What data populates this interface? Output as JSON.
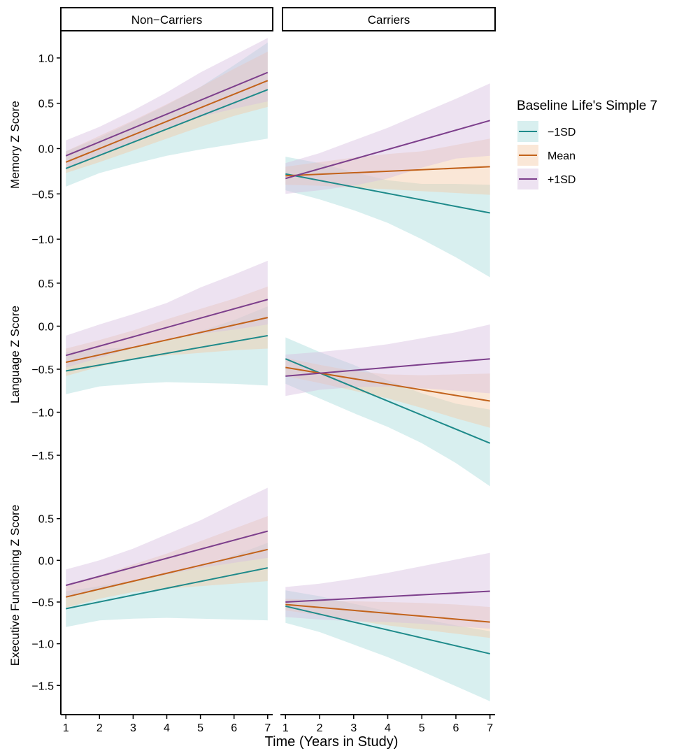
{
  "facets": [
    "Non−Carriers",
    "Carriers"
  ],
  "legend": {
    "title": "Baseline Life's Simple 7",
    "items": [
      {
        "label": "−1SD",
        "color": "#1e8a8a",
        "fill": "#a8dcdc"
      },
      {
        "label": "Mean",
        "color": "#c2621a",
        "fill": "#f3c9a6"
      },
      {
        "label": "+1SD",
        "color": "#7d3f8c",
        "fill": "#d7bfe0"
      }
    ],
    "placement": "right"
  },
  "xlabel": "Time (Years in Study)",
  "chart_data": [
    {
      "type": "line",
      "ylabel": "Memory Z Score",
      "x": [
        1,
        2,
        3,
        4,
        5,
        6,
        7
      ],
      "xlim": [
        0.85,
        7.15
      ],
      "ylim": [
        -1.2,
        1.3
      ],
      "yticks": [
        1.0,
        0.5,
        0.0,
        -0.5,
        -1.0
      ],
      "ytick_labels": [
        "1.0",
        "0.5",
        "0.0",
        "−0.5",
        "−1.0"
      ],
      "panels": [
        {
          "facet": "Non−Carriers",
          "series": [
            {
              "name": "−1SD",
              "start": -0.22,
              "end": 0.65,
              "lower": [
                -0.42,
                -0.27,
                -0.17,
                -0.08,
                -0.01,
                0.05,
                0.11
              ],
              "upper": [
                -0.03,
                0.12,
                0.3,
                0.48,
                0.68,
                0.92,
                1.17
              ]
            },
            {
              "name": "Mean",
              "start": -0.15,
              "end": 0.75,
              "lower": [
                -0.27,
                -0.15,
                -0.02,
                0.11,
                0.24,
                0.36,
                0.46
              ],
              "upper": [
                -0.03,
                0.14,
                0.31,
                0.49,
                0.68,
                0.88,
                1.07
              ]
            },
            {
              "name": "+1SD",
              "start": -0.08,
              "end": 0.84,
              "lower": [
                -0.23,
                -0.07,
                0.08,
                0.23,
                0.35,
                0.44,
                0.52
              ],
              "upper": [
                0.09,
                0.24,
                0.42,
                0.62,
                0.84,
                1.03,
                1.22
              ]
            }
          ]
        },
        {
          "facet": "Carriers",
          "series": [
            {
              "name": "−1SD",
              "start": -0.28,
              "end": -0.71,
              "lower": [
                -0.46,
                -0.56,
                -0.68,
                -0.82,
                -1.0,
                -1.2,
                -1.42
              ],
              "upper": [
                -0.09,
                -0.16,
                -0.26,
                -0.35,
                -0.39,
                -0.39,
                -0.4
              ]
            },
            {
              "name": "Mean",
              "start": -0.3,
              "end": -0.2,
              "lower": [
                -0.4,
                -0.41,
                -0.43,
                -0.45,
                -0.47,
                -0.49,
                -0.51
              ],
              "upper": [
                -0.2,
                -0.15,
                -0.1,
                -0.06,
                -0.03,
                0.04,
                0.11
              ]
            },
            {
              "name": "+1SD",
              "start": -0.33,
              "end": 0.31,
              "lower": [
                -0.5,
                -0.46,
                -0.41,
                -0.33,
                -0.21,
                -0.11,
                -0.08
              ],
              "upper": [
                -0.16,
                -0.05,
                0.09,
                0.23,
                0.39,
                0.55,
                0.72
              ]
            }
          ]
        }
      ]
    },
    {
      "type": "line",
      "ylabel": "Language Z Score",
      "x": [
        1,
        2,
        3,
        4,
        5,
        6,
        7
      ],
      "xlim": [
        0.85,
        7.15
      ],
      "ylim": [
        -1.8,
        0.8
      ],
      "yticks": [
        0.5,
        0.0,
        -0.5,
        -1.0,
        -1.5
      ],
      "ytick_labels": [
        "0.5",
        "0.0",
        "−0.5",
        "−1.0",
        "−1.5"
      ],
      "panels": [
        {
          "facet": "Non−Carriers",
          "series": [
            {
              "name": "−1SD",
              "start": -0.52,
              "end": -0.11,
              "lower": [
                -0.79,
                -0.7,
                -0.67,
                -0.65,
                -0.66,
                -0.67,
                -0.69
              ],
              "upper": [
                -0.3,
                -0.27,
                -0.24,
                -0.17,
                -0.06,
                0.07,
                0.23
              ]
            },
            {
              "name": "Mean",
              "start": -0.42,
              "end": 0.1,
              "lower": [
                -0.58,
                -0.47,
                -0.39,
                -0.34,
                -0.31,
                -0.28,
                -0.26
              ],
              "upper": [
                -0.26,
                -0.16,
                -0.05,
                0.08,
                0.2,
                0.32,
                0.46
              ]
            },
            {
              "name": "+1SD",
              "start": -0.34,
              "end": 0.31,
              "lower": [
                -0.48,
                -0.37,
                -0.25,
                -0.16,
                -0.09,
                -0.04,
                0.02
              ],
              "upper": [
                -0.11,
                0.02,
                0.14,
                0.27,
                0.45,
                0.6,
                0.76
              ]
            }
          ]
        },
        {
          "facet": "Carriers",
          "series": [
            {
              "name": "−1SD",
              "start": -0.38,
              "end": -1.36,
              "lower": [
                -0.67,
                -0.84,
                -1.01,
                -1.17,
                -1.36,
                -1.59,
                -1.86
              ],
              "upper": [
                -0.13,
                -0.3,
                -0.45,
                -0.63,
                -0.78,
                -0.9,
                -0.97
              ]
            },
            {
              "name": "Mean",
              "start": -0.48,
              "end": -0.87,
              "lower": [
                -0.58,
                -0.66,
                -0.75,
                -0.84,
                -0.95,
                -1.07,
                -1.18
              ],
              "upper": [
                -0.37,
                -0.45,
                -0.52,
                -0.56,
                -0.57,
                -0.56,
                -0.55
              ]
            },
            {
              "name": "+1SD",
              "start": -0.58,
              "end": -0.38,
              "lower": [
                -0.81,
                -0.74,
                -0.71,
                -0.7,
                -0.72,
                -0.75,
                -0.78
              ],
              "upper": [
                -0.33,
                -0.3,
                -0.26,
                -0.21,
                -0.14,
                -0.07,
                0.02
              ]
            }
          ]
        }
      ]
    },
    {
      "type": "line",
      "ylabel": "Executive Functioning Z Score",
      "x": [
        1,
        2,
        3,
        4,
        5,
        6,
        7
      ],
      "xlim": [
        0.85,
        7.15
      ],
      "ylim": [
        -1.85,
        0.95
      ],
      "yticks": [
        0.5,
        0.0,
        -0.5,
        -1.0,
        -1.5
      ],
      "ytick_labels": [
        "0.5",
        "0.0",
        "−0.5",
        "−1.0",
        "−1.5"
      ],
      "panels": [
        {
          "facet": "Non−Carriers",
          "series": [
            {
              "name": "−1SD",
              "start": -0.58,
              "end": -0.09,
              "lower": [
                -0.8,
                -0.72,
                -0.7,
                -0.69,
                -0.7,
                -0.71,
                -0.72
              ],
              "upper": [
                -0.37,
                -0.31,
                -0.24,
                -0.16,
                -0.07,
                0.06,
                0.21
              ]
            },
            {
              "name": "Mean",
              "start": -0.44,
              "end": 0.13,
              "lower": [
                -0.57,
                -0.46,
                -0.38,
                -0.34,
                -0.31,
                -0.28,
                -0.25
              ],
              "upper": [
                -0.29,
                -0.18,
                -0.05,
                0.08,
                0.23,
                0.38,
                0.53
              ]
            },
            {
              "name": "+1SD",
              "start": -0.3,
              "end": 0.35,
              "lower": [
                -0.45,
                -0.34,
                -0.25,
                -0.17,
                -0.09,
                -0.03,
                0.03
              ],
              "upper": [
                -0.11,
                0.0,
                0.14,
                0.31,
                0.48,
                0.68,
                0.87
              ]
            }
          ]
        },
        {
          "facet": "Carriers",
          "series": [
            {
              "name": "−1SD",
              "start": -0.55,
              "end": -1.12,
              "lower": [
                -0.75,
                -0.86,
                -1.01,
                -1.16,
                -1.33,
                -1.51,
                -1.69
              ],
              "upper": [
                -0.36,
                -0.43,
                -0.52,
                -0.61,
                -0.7,
                -0.78,
                -0.85
              ]
            },
            {
              "name": "Mean",
              "start": -0.53,
              "end": -0.74,
              "lower": [
                -0.6,
                -0.66,
                -0.72,
                -0.78,
                -0.83,
                -0.88,
                -0.93
              ],
              "upper": [
                -0.46,
                -0.48,
                -0.49,
                -0.5,
                -0.51,
                -0.53,
                -0.56
              ]
            },
            {
              "name": "+1SD",
              "start": -0.5,
              "end": -0.37,
              "lower": [
                -0.68,
                -0.71,
                -0.73,
                -0.74,
                -0.76,
                -0.79,
                -0.82
              ],
              "upper": [
                -0.32,
                -0.28,
                -0.22,
                -0.15,
                -0.07,
                0.01,
                0.09
              ]
            }
          ]
        }
      ]
    }
  ]
}
